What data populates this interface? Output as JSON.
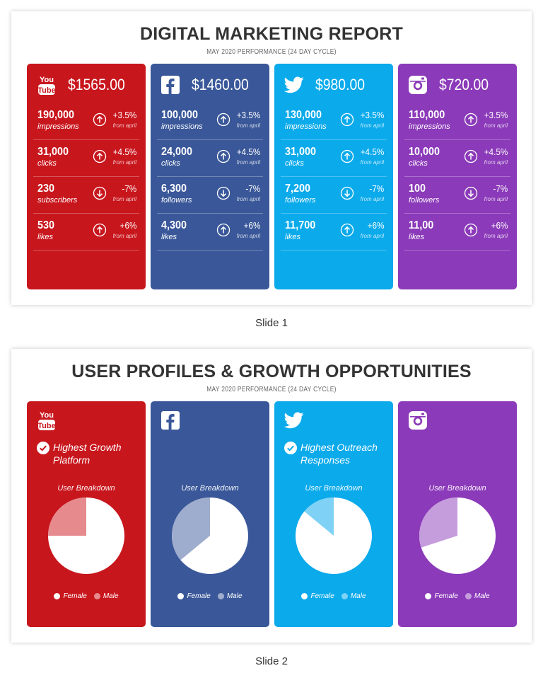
{
  "slide1": {
    "title": "DIGITAL MARKETING REPORT",
    "subtitle": "MAY 2020 PERFORMANCE (24 DAY CYCLE)",
    "caption": "Slide 1",
    "cards": [
      {
        "platform": "YouTube",
        "icon": "youtube-logo-icon",
        "color": "#c8161d",
        "amount": "$1565.00",
        "rows": [
          {
            "value": "190,000",
            "label": "impressions",
            "change": "+3.5%",
            "direction": "up",
            "from": "from april"
          },
          {
            "value": "31,000",
            "label": "clicks",
            "change": "+4.5%",
            "direction": "up",
            "from": "from april"
          },
          {
            "value": "230",
            "label": "subscribers",
            "change": "-7%",
            "direction": "down",
            "from": "from april"
          },
          {
            "value": "530",
            "label": "likes",
            "change": "+6%",
            "direction": "up",
            "from": "from april"
          }
        ]
      },
      {
        "platform": "Facebook",
        "icon": "facebook-logo-icon",
        "color": "#3a5899",
        "amount": "$1460.00",
        "rows": [
          {
            "value": "100,000",
            "label": "impressions",
            "change": "+3.5%",
            "direction": "up",
            "from": "from april"
          },
          {
            "value": "24,000",
            "label": "clicks",
            "change": "+4.5%",
            "direction": "up",
            "from": "from april"
          },
          {
            "value": "6,300",
            "label": "followers",
            "change": "-7%",
            "direction": "down",
            "from": "from april"
          },
          {
            "value": "4,300",
            "label": "likes",
            "change": "+6%",
            "direction": "up",
            "from": "from april"
          }
        ]
      },
      {
        "platform": "Twitter",
        "icon": "twitter-logo-icon",
        "color": "#0baaeb",
        "amount": "$980.00",
        "rows": [
          {
            "value": "130,000",
            "label": "impressions",
            "change": "+3.5%",
            "direction": "up",
            "from": "from april"
          },
          {
            "value": "31,000",
            "label": "clicks",
            "change": "+4.5%",
            "direction": "up",
            "from": "from april"
          },
          {
            "value": "7,200",
            "label": "followers",
            "change": "-7%",
            "direction": "down",
            "from": "from april"
          },
          {
            "value": "11,700",
            "label": "likes",
            "change": "+6%",
            "direction": "up",
            "from": "from april"
          }
        ]
      },
      {
        "platform": "Instagram",
        "icon": "instagram-logo-icon",
        "color": "#8b3ab9",
        "amount": "$720.00",
        "rows": [
          {
            "value": "110,000",
            "label": "impressions",
            "change": "+3.5%",
            "direction": "up",
            "from": "from april"
          },
          {
            "value": "10,000",
            "label": "clicks",
            "change": "+4.5%",
            "direction": "up",
            "from": "from april"
          },
          {
            "value": "100",
            "label": "followers",
            "change": "-7%",
            "direction": "down",
            "from": "from april"
          },
          {
            "value": "11,00",
            "label": "likes",
            "change": "+6%",
            "direction": "up",
            "from": "from april"
          }
        ]
      }
    ]
  },
  "slide2": {
    "title": "USER PROFILES & GROWTH OPPORTUNITIES",
    "subtitle": "MAY 2020 PERFORMANCE (24 DAY CYCLE)",
    "caption": "Slide 2",
    "cards": [
      {
        "platform": "YouTube",
        "badge": "Highest Growth Platform",
        "breakdown_title": "User Breakdown",
        "male_color": "#e68a8e"
      },
      {
        "platform": "Facebook",
        "badge": "",
        "breakdown_title": "User Breakdown",
        "male_color": "#9eaccd"
      },
      {
        "platform": "Twitter",
        "badge": "Highest Outreach Responses",
        "breakdown_title": "User Breakdown",
        "male_color": "#7fd2f5"
      },
      {
        "platform": "Instagram",
        "badge": "",
        "breakdown_title": "User Breakdown",
        "male_color": "#c59cdc"
      }
    ],
    "legend": {
      "female": "Female",
      "male": "Male",
      "female_color": "#ffffff"
    }
  },
  "chart_data": [
    {
      "type": "pie",
      "title": "User Breakdown",
      "platform": "YouTube",
      "categories": [
        "Female",
        "Male"
      ],
      "values": [
        75,
        25
      ]
    },
    {
      "type": "pie",
      "title": "User Breakdown",
      "platform": "Facebook",
      "categories": [
        "Female",
        "Male"
      ],
      "values": [
        64,
        36
      ]
    },
    {
      "type": "pie",
      "title": "User Breakdown",
      "platform": "Twitter",
      "categories": [
        "Female",
        "Male"
      ],
      "values": [
        86,
        14
      ]
    },
    {
      "type": "pie",
      "title": "User Breakdown",
      "platform": "Instagram",
      "categories": [
        "Female",
        "Male"
      ],
      "values": [
        70,
        30
      ]
    }
  ]
}
